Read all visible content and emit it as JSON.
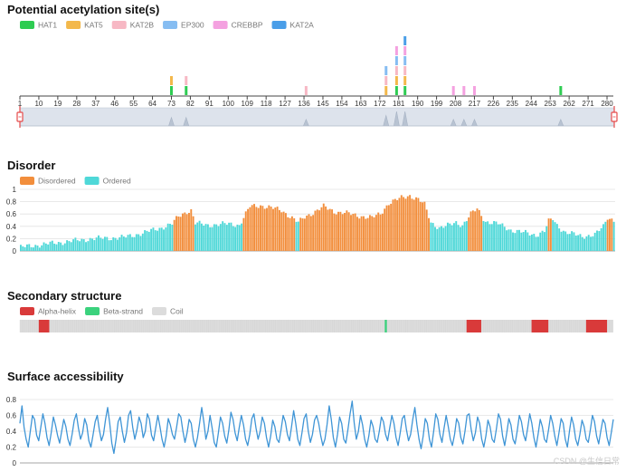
{
  "watermark": "CSDN @生信日常",
  "chart_data": [
    {
      "type": "bar",
      "stacked": true,
      "title": "Potential acetylation site(s)",
      "legend": [
        "HAT1",
        "KAT5",
        "KAT2B",
        "EP300",
        "CREBBP",
        "KAT2A"
      ],
      "colors": {
        "HAT1": "#2ecc52",
        "KAT5": "#f3b84b",
        "KAT2B": "#f7b8c4",
        "EP300": "#86bdf2",
        "CREBBP": "#f4a1e0",
        "KAT2A": "#4a9ee8"
      },
      "x_ticks": [
        "1",
        "10",
        "19",
        "28",
        "37",
        "46",
        "55",
        "64",
        "73",
        "82",
        "91",
        "100",
        "109",
        "118",
        "127",
        "136",
        "145",
        "154",
        "163",
        "172",
        "181",
        "190",
        "199",
        "208",
        "217",
        "226",
        "235",
        "244",
        "253",
        "262",
        "271",
        "280"
      ],
      "xlim": [
        1,
        283
      ],
      "sites": [
        {
          "pos": 73,
          "values": {
            "HAT1": 1,
            "KAT5": 1
          }
        },
        {
          "pos": 80,
          "values": {
            "HAT1": 1,
            "KAT2B": 1
          }
        },
        {
          "pos": 137,
          "values": {
            "KAT2B": 1
          }
        },
        {
          "pos": 175,
          "values": {
            "KAT5": 1,
            "KAT2B": 1,
            "EP300": 1
          }
        },
        {
          "pos": 180,
          "values": {
            "HAT1": 1,
            "KAT5": 1,
            "KAT2B": 1,
            "EP300": 1,
            "CREBBP": 1
          }
        },
        {
          "pos": 184,
          "values": {
            "HAT1": 1,
            "KAT5": 1,
            "KAT2B": 1,
            "EP300": 1,
            "CREBBP": 1,
            "KAT2A": 1
          }
        },
        {
          "pos": 207,
          "values": {
            "CREBBP": 1
          }
        },
        {
          "pos": 212,
          "values": {
            "CREBBP": 1
          }
        },
        {
          "pos": 217,
          "values": {
            "CREBBP": 1
          }
        },
        {
          "pos": 258,
          "values": {
            "HAT1": 1
          }
        }
      ],
      "zoom_range": [
        1,
        283
      ]
    },
    {
      "type": "bar",
      "title": "Disorder",
      "legend": [
        "Disordered",
        "Ordered"
      ],
      "colors": {
        "Disordered": "#f28e3c",
        "Ordered": "#4fd8d8"
      },
      "threshold": 0.5,
      "y_ticks": [
        "1",
        "0.8",
        "0.6",
        "0.4",
        "0.2",
        "0"
      ],
      "ylim": [
        0,
        1
      ],
      "length": 283,
      "keypoints": [
        [
          1,
          0.06
        ],
        [
          10,
          0.1
        ],
        [
          20,
          0.14
        ],
        [
          35,
          0.2
        ],
        [
          50,
          0.22
        ],
        [
          60,
          0.3
        ],
        [
          68,
          0.38
        ],
        [
          73,
          0.44
        ],
        [
          76,
          0.56
        ],
        [
          80,
          0.64
        ],
        [
          82,
          0.66
        ],
        [
          84,
          0.45
        ],
        [
          90,
          0.42
        ],
        [
          100,
          0.44
        ],
        [
          105,
          0.42
        ],
        [
          110,
          0.72
        ],
        [
          115,
          0.74
        ],
        [
          120,
          0.7
        ],
        [
          125,
          0.66
        ],
        [
          130,
          0.54
        ],
        [
          133,
          0.46
        ],
        [
          136,
          0.55
        ],
        [
          142,
          0.66
        ],
        [
          145,
          0.72
        ],
        [
          150,
          0.64
        ],
        [
          155,
          0.62
        ],
        [
          160,
          0.58
        ],
        [
          168,
          0.54
        ],
        [
          172,
          0.6
        ],
        [
          176,
          0.78
        ],
        [
          182,
          0.86
        ],
        [
          186,
          0.9
        ],
        [
          190,
          0.84
        ],
        [
          193,
          0.75
        ],
        [
          196,
          0.46
        ],
        [
          200,
          0.38
        ],
        [
          205,
          0.42
        ],
        [
          208,
          0.46
        ],
        [
          211,
          0.42
        ],
        [
          215,
          0.6
        ],
        [
          218,
          0.68
        ],
        [
          222,
          0.48
        ],
        [
          228,
          0.44
        ],
        [
          234,
          0.34
        ],
        [
          240,
          0.3
        ],
        [
          246,
          0.26
        ],
        [
          250,
          0.32
        ],
        [
          252,
          0.48
        ],
        [
          254,
          0.52
        ],
        [
          256,
          0.42
        ],
        [
          260,
          0.3
        ],
        [
          268,
          0.24
        ],
        [
          274,
          0.26
        ],
        [
          278,
          0.4
        ],
        [
          280,
          0.55
        ],
        [
          283,
          0.5
        ]
      ]
    },
    {
      "type": "heatmap",
      "title": "Secondary structure",
      "legend": [
        "Alpha-helix",
        "Beta-strand",
        "Coil"
      ],
      "colors": {
        "Alpha-helix": "#d93a3a",
        "Beta-strand": "#3bd27d",
        "Coil": "#dcdcdc"
      },
      "length": 283,
      "segments": [
        {
          "type": "Alpha-helix",
          "start": 10,
          "end": 14
        },
        {
          "type": "Beta-strand",
          "start": 175,
          "end": 175
        },
        {
          "type": "Alpha-helix",
          "start": 214,
          "end": 220
        },
        {
          "type": "Alpha-helix",
          "start": 245,
          "end": 252
        },
        {
          "type": "Alpha-helix",
          "start": 271,
          "end": 280
        }
      ]
    },
    {
      "type": "line",
      "title": "Surface accessibility",
      "color": "#3f95d6",
      "y_ticks": [
        "0.8",
        "0.6",
        "0.4",
        "0.2",
        "0"
      ],
      "ylim": [
        0,
        0.8
      ],
      "length": 283,
      "values": [
        0.5,
        0.72,
        0.45,
        0.3,
        0.2,
        0.4,
        0.6,
        0.55,
        0.35,
        0.28,
        0.45,
        0.62,
        0.5,
        0.32,
        0.22,
        0.38,
        0.58,
        0.48,
        0.35,
        0.25,
        0.4,
        0.55,
        0.46,
        0.3,
        0.22,
        0.36,
        0.54,
        0.62,
        0.44,
        0.3,
        0.38,
        0.56,
        0.48,
        0.28,
        0.2,
        0.35,
        0.52,
        0.6,
        0.42,
        0.28,
        0.36,
        0.55,
        0.7,
        0.5,
        0.25,
        0.12,
        0.3,
        0.52,
        0.58,
        0.4,
        0.26,
        0.38,
        0.6,
        0.66,
        0.45,
        0.3,
        0.42,
        0.58,
        0.5,
        0.32,
        0.4,
        0.62,
        0.55,
        0.35,
        0.28,
        0.44,
        0.6,
        0.46,
        0.3,
        0.2,
        0.34,
        0.56,
        0.48,
        0.36,
        0.3,
        0.45,
        0.62,
        0.58,
        0.4,
        0.26,
        0.38,
        0.55,
        0.5,
        0.3,
        0.2,
        0.32,
        0.5,
        0.7,
        0.52,
        0.3,
        0.4,
        0.6,
        0.44,
        0.26,
        0.2,
        0.38,
        0.58,
        0.5,
        0.34,
        0.25,
        0.42,
        0.64,
        0.55,
        0.38,
        0.28,
        0.45,
        0.6,
        0.48,
        0.3,
        0.22,
        0.36,
        0.56,
        0.62,
        0.44,
        0.3,
        0.4,
        0.58,
        0.5,
        0.32,
        0.2,
        0.34,
        0.54,
        0.46,
        0.3,
        0.26,
        0.42,
        0.6,
        0.52,
        0.36,
        0.28,
        0.46,
        0.66,
        0.5,
        0.3,
        0.22,
        0.38,
        0.56,
        0.62,
        0.4,
        0.26,
        0.36,
        0.54,
        0.6,
        0.5,
        0.34,
        0.22,
        0.3,
        0.48,
        0.72,
        0.55,
        0.32,
        0.2,
        0.36,
        0.58,
        0.5,
        0.3,
        0.25,
        0.42,
        0.62,
        0.78,
        0.5,
        0.3,
        0.4,
        0.6,
        0.48,
        0.3,
        0.2,
        0.34,
        0.54,
        0.46,
        0.3,
        0.26,
        0.4,
        0.58,
        0.52,
        0.36,
        0.28,
        0.44,
        0.6,
        0.5,
        0.32,
        0.22,
        0.38,
        0.56,
        0.6,
        0.42,
        0.28,
        0.36,
        0.55,
        0.7,
        0.48,
        0.3,
        0.18,
        0.34,
        0.56,
        0.5,
        0.3,
        0.2,
        0.4,
        0.62,
        0.55,
        0.36,
        0.26,
        0.44,
        0.6,
        0.46,
        0.3,
        0.22,
        0.36,
        0.56,
        0.5,
        0.32,
        0.24,
        0.4,
        0.6,
        0.62,
        0.42,
        0.28,
        0.38,
        0.58,
        0.5,
        0.3,
        0.2,
        0.34,
        0.54,
        0.46,
        0.3,
        0.26,
        0.42,
        0.62,
        0.55,
        0.34,
        0.22,
        0.38,
        0.56,
        0.48,
        0.3,
        0.24,
        0.4,
        0.6,
        0.52,
        0.36,
        0.28,
        0.44,
        0.62,
        0.5,
        0.32,
        0.2,
        0.36,
        0.55,
        0.46,
        0.3,
        0.26,
        0.42,
        0.6,
        0.5,
        0.34,
        0.22,
        0.38,
        0.56,
        0.5,
        0.3,
        0.2,
        0.4,
        0.58,
        0.48,
        0.3,
        0.22,
        0.36,
        0.54,
        0.46,
        0.3,
        0.26,
        0.42,
        0.6,
        0.52,
        0.34,
        0.24,
        0.4,
        0.55,
        0.5,
        0.32,
        0.22,
        0.38,
        0.55
      ]
    }
  ]
}
